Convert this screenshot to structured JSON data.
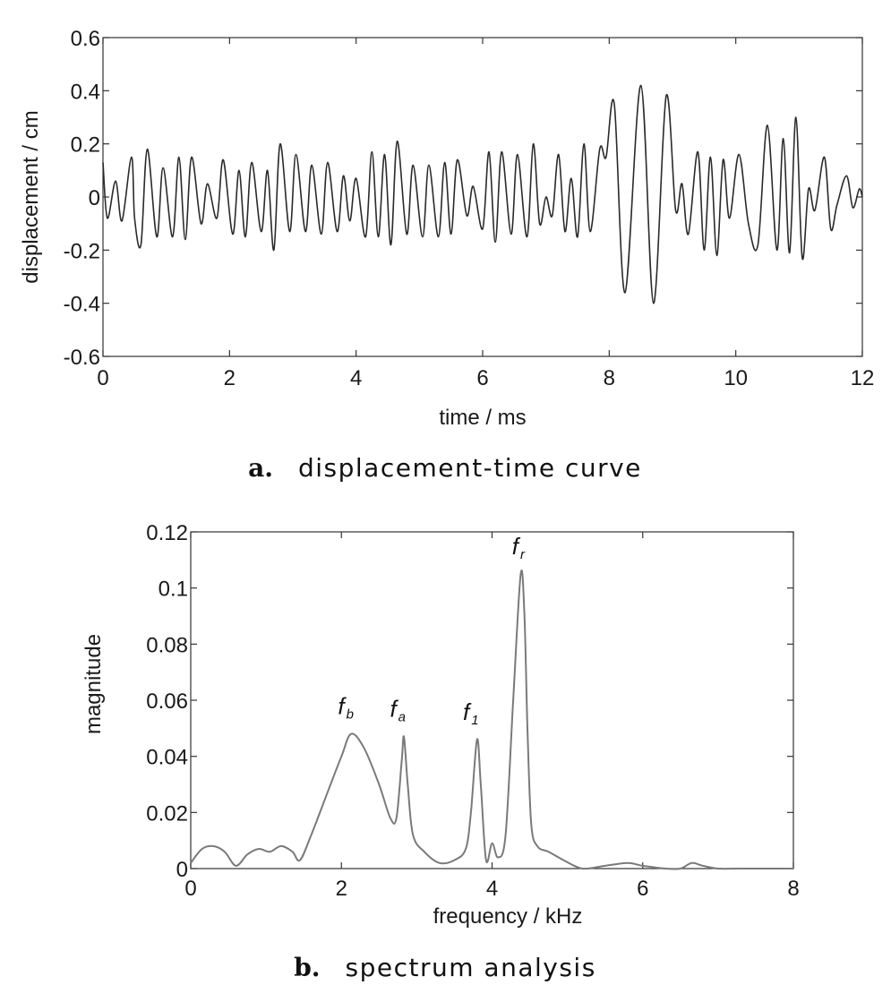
{
  "chart_data": [
    {
      "type": "line",
      "caption_letter": "a.",
      "caption": "displacement-time curve",
      "xlabel": "time / ms",
      "ylabel": "displacement / cm",
      "xlim": [
        0,
        12
      ],
      "ylim": [
        -0.6,
        0.6
      ],
      "xticks": [
        0,
        2,
        4,
        6,
        8,
        10,
        12
      ],
      "yticks": [
        -0.6,
        -0.4,
        -0.2,
        0,
        0.2,
        0.4,
        0.6
      ],
      "xtick_labels": [
        "0",
        "2",
        "4",
        "6",
        "8",
        "10",
        "12"
      ],
      "ytick_labels": [
        "-0.6",
        "-0.4",
        "-0.2",
        "0",
        "0.2",
        "0.4",
        "0.6"
      ],
      "grid": false,
      "line_color": "#2a2a2a",
      "series": [
        {
          "x": [
            0,
            0.07,
            0.2,
            0.3,
            0.45,
            0.5,
            0.6,
            0.7,
            0.85,
            0.95,
            1.1,
            1.2,
            1.3,
            1.4,
            1.55,
            1.65,
            1.8,
            1.9,
            2.05,
            2.15,
            2.25,
            2.35,
            2.5,
            2.6,
            2.7,
            2.8,
            2.95,
            3.05,
            3.2,
            3.3,
            3.45,
            3.55,
            3.7,
            3.8,
            3.9,
            4.0,
            4.15,
            4.25,
            4.35,
            4.45,
            4.55,
            4.65,
            4.8,
            4.9,
            5.05,
            5.15,
            5.3,
            5.4,
            5.5,
            5.6,
            5.75,
            5.85,
            6.0,
            6.1,
            6.2,
            6.3,
            6.45,
            6.55,
            6.7,
            6.8,
            6.9,
            7.0,
            7.1,
            7.2,
            7.3,
            7.4,
            7.5,
            7.6,
            7.7,
            7.85,
            7.95,
            8.08,
            8.25,
            8.5,
            8.7,
            8.9,
            9.05,
            9.15,
            9.25,
            9.4,
            9.5,
            9.6,
            9.7,
            9.8,
            9.9,
            10.05,
            10.2,
            10.35,
            10.5,
            10.65,
            10.75,
            10.85,
            10.95,
            11.05,
            11.15,
            11.25,
            11.4,
            11.5,
            11.6,
            11.75,
            11.85,
            11.95,
            12.0
          ],
          "y": [
            0.13,
            -0.08,
            0.06,
            -0.09,
            0.15,
            -0.08,
            -0.18,
            0.18,
            -0.15,
            0.11,
            -0.15,
            0.15,
            -0.16,
            0.15,
            -0.1,
            0.05,
            -0.08,
            0.14,
            -0.14,
            0.1,
            -0.15,
            0.13,
            -0.13,
            0.1,
            -0.2,
            0.2,
            -0.13,
            0.16,
            -0.13,
            0.12,
            -0.14,
            0.13,
            -0.13,
            0.08,
            -0.09,
            0.07,
            -0.15,
            0.17,
            -0.15,
            0.16,
            -0.18,
            0.21,
            -0.14,
            0.12,
            -0.15,
            0.12,
            -0.15,
            0.13,
            -0.14,
            0.14,
            -0.07,
            0.04,
            -0.12,
            0.17,
            -0.17,
            0.17,
            -0.14,
            0.16,
            -0.15,
            0.2,
            -0.1,
            0.0,
            -0.07,
            0.16,
            -0.13,
            0.07,
            -0.15,
            0.2,
            -0.13,
            0.18,
            0.15,
            0.35,
            -0.36,
            0.42,
            -0.4,
            0.38,
            -0.05,
            0.05,
            -0.14,
            0.17,
            -0.2,
            0.15,
            -0.22,
            0.14,
            -0.08,
            0.16,
            -0.1,
            -0.18,
            0.27,
            -0.2,
            0.22,
            -0.21,
            0.3,
            -0.23,
            0.03,
            -0.05,
            0.15,
            -0.12,
            -0.03,
            0.08,
            -0.04,
            0.03,
            0.0
          ]
        }
      ]
    },
    {
      "type": "line",
      "caption_letter": "b.",
      "caption": "spectrum analysis",
      "xlabel": "frequency / kHz",
      "ylabel": "magnitude",
      "xlim": [
        0,
        8
      ],
      "ylim": [
        0,
        0.12
      ],
      "xticks": [
        0,
        2,
        4,
        6,
        8
      ],
      "yticks": [
        0,
        0.02,
        0.04,
        0.06,
        0.08,
        0.1,
        0.12
      ],
      "xtick_labels": [
        "0",
        "2",
        "4",
        "6",
        "8"
      ],
      "ytick_labels": [
        "0",
        "0.02",
        "0.04",
        "0.06",
        "0.08",
        "0.1",
        "0.12"
      ],
      "grid": false,
      "line_color": "#7a7a7a",
      "series": [
        {
          "x": [
            0.0,
            0.15,
            0.3,
            0.45,
            0.6,
            0.75,
            0.9,
            1.05,
            1.2,
            1.35,
            1.45,
            1.6,
            1.8,
            2.0,
            2.13,
            2.3,
            2.5,
            2.65,
            2.73,
            2.8,
            2.83,
            2.88,
            2.95,
            3.1,
            3.3,
            3.5,
            3.65,
            3.72,
            3.8,
            3.85,
            3.92,
            4.0,
            4.08,
            4.18,
            4.28,
            4.38,
            4.43,
            4.47,
            4.52,
            4.6,
            4.75,
            4.95,
            5.2,
            5.5,
            5.8,
            6.0,
            6.3,
            6.5,
            6.65,
            6.8,
            7.0,
            7.3,
            8.0
          ],
          "y": [
            0.002,
            0.007,
            0.008,
            0.006,
            0.001,
            0.005,
            0.007,
            0.006,
            0.008,
            0.006,
            0.003,
            0.012,
            0.026,
            0.04,
            0.048,
            0.043,
            0.03,
            0.018,
            0.018,
            0.038,
            0.047,
            0.03,
            0.012,
            0.006,
            0.002,
            0.003,
            0.007,
            0.02,
            0.046,
            0.03,
            0.003,
            0.009,
            0.004,
            0.012,
            0.06,
            0.105,
            0.09,
            0.05,
            0.016,
            0.008,
            0.006,
            0.003,
            0.0,
            0.001,
            0.002,
            0.001,
            0.0,
            0.0,
            0.002,
            0.001,
            0.0,
            0.0,
            0.0
          ]
        }
      ],
      "annotations": [
        {
          "text": "f",
          "sub": "b",
          "x": 2.13
        },
        {
          "text": "f",
          "sub": "a",
          "x": 2.82
        },
        {
          "text": "f",
          "sub": "1",
          "x": 3.79
        },
        {
          "text": "f",
          "sub": "r",
          "x": 4.42
        }
      ]
    }
  ]
}
